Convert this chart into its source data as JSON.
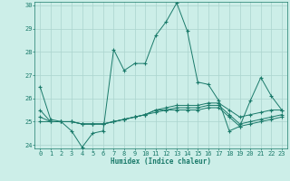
{
  "xlabel": "Humidex (Indice chaleur)",
  "ylabel": "",
  "xlim": [
    -0.5,
    23.5
  ],
  "ylim": [
    23.85,
    30.15
  ],
  "yticks": [
    24,
    25,
    26,
    27,
    28,
    29,
    30
  ],
  "xticks": [
    0,
    1,
    2,
    3,
    4,
    5,
    6,
    7,
    8,
    9,
    10,
    11,
    12,
    13,
    14,
    15,
    16,
    17,
    18,
    19,
    20,
    21,
    22,
    23
  ],
  "bg_color": "#cceee8",
  "grid_color": "#aad4ce",
  "line_color": "#1a7a6a",
  "lines": [
    [
      26.5,
      25.1,
      25.0,
      24.6,
      23.9,
      24.5,
      24.6,
      28.1,
      27.2,
      27.5,
      27.5,
      28.7,
      29.3,
      30.1,
      28.9,
      26.7,
      26.6,
      25.9,
      24.6,
      24.8,
      25.9,
      26.9,
      26.1,
      25.5
    ],
    [
      25.5,
      25.0,
      25.0,
      25.0,
      24.9,
      24.9,
      24.9,
      25.0,
      25.1,
      25.2,
      25.3,
      25.5,
      25.6,
      25.7,
      25.7,
      25.7,
      25.8,
      25.8,
      25.5,
      25.2,
      25.3,
      25.4,
      25.5,
      25.5
    ],
    [
      25.2,
      25.0,
      25.0,
      25.0,
      24.9,
      24.9,
      24.9,
      25.0,
      25.1,
      25.2,
      25.3,
      25.5,
      25.5,
      25.6,
      25.6,
      25.6,
      25.7,
      25.7,
      25.3,
      24.9,
      25.0,
      25.1,
      25.2,
      25.3
    ],
    [
      25.0,
      25.0,
      25.0,
      25.0,
      24.9,
      24.9,
      24.9,
      25.0,
      25.1,
      25.2,
      25.3,
      25.4,
      25.5,
      25.5,
      25.5,
      25.5,
      25.6,
      25.6,
      25.2,
      24.8,
      24.9,
      25.0,
      25.1,
      25.2
    ]
  ]
}
